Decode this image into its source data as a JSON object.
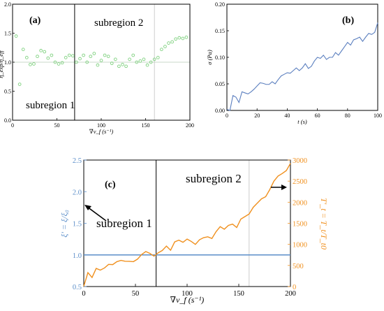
{
  "chart_data": [
    {
      "panel": "(a)",
      "type": "scatter",
      "xlabel": "∇v_f (s⁻¹)",
      "ylabel": "η_exp/η_eff",
      "xlim": [
        0,
        200
      ],
      "ylim": [
        0,
        2.0
      ],
      "xticks": [
        0,
        50,
        100,
        150,
        200
      ],
      "yticks": [
        0.0,
        0.5,
        1.0,
        1.5,
        2.0
      ],
      "reference_line_y": 1.0,
      "boundary_x": 70,
      "secondary_boundary_x": 160,
      "region_labels": [
        "subregion 1",
        "subregion 2"
      ],
      "marker_color": "#7fd17f",
      "series": [
        {
          "x": [
            4,
            8,
            12,
            16,
            20,
            24,
            28,
            32,
            36,
            40,
            44,
            48,
            52,
            56,
            60,
            64,
            68,
            72,
            76,
            80,
            84,
            88,
            92,
            96,
            100,
            104,
            108,
            112,
            116,
            120,
            124,
            128,
            132,
            136,
            140,
            144,
            148,
            152,
            156,
            160,
            164,
            168,
            172,
            176,
            180,
            184,
            188,
            192,
            196
          ],
          "values": [
            1.45,
            0.62,
            1.22,
            1.08,
            0.96,
            0.97,
            1.1,
            1.2,
            1.18,
            1.07,
            1.12,
            1.0,
            0.97,
            0.99,
            1.08,
            1.12,
            1.11,
            1.0,
            1.06,
            1.12,
            1.0,
            1.1,
            1.15,
            0.95,
            1.03,
            1.12,
            1.1,
            0.98,
            1.05,
            0.93,
            0.96,
            0.93,
            1.05,
            1.12,
            1.0,
            1.02,
            1.05,
            0.95,
            1.0,
            1.05,
            1.08,
            1.22,
            1.27,
            1.33,
            1.35,
            1.4,
            1.42,
            1.41,
            1.43
          ]
        }
      ]
    },
    {
      "panel": "(b)",
      "type": "line",
      "xlabel": "t (s)",
      "ylabel": "σ (Pa)",
      "xlim": [
        0,
        100
      ],
      "ylim": [
        0,
        0.2
      ],
      "xticks": [
        0,
        20,
        40,
        60,
        80,
        100
      ],
      "yticks": [
        0.0,
        0.05,
        0.1,
        0.15,
        0.2
      ],
      "line_color": "#5b7fbf",
      "series": [
        {
          "x": [
            0,
            2,
            4,
            6,
            8,
            10,
            12,
            14,
            16,
            18,
            20,
            22,
            24,
            26,
            28,
            30,
            32,
            34,
            36,
            38,
            40,
            42,
            44,
            46,
            48,
            50,
            52,
            54,
            56,
            58,
            60,
            62,
            64,
            66,
            68,
            70,
            72,
            74,
            76,
            78,
            80,
            82,
            84,
            86,
            88,
            90,
            92,
            94,
            96,
            98,
            100
          ],
          "values": [
            0.002,
            0.0,
            0.028,
            0.025,
            0.015,
            0.035,
            0.033,
            0.031,
            0.035,
            0.04,
            0.046,
            0.052,
            0.051,
            0.049,
            0.049,
            0.054,
            0.05,
            0.058,
            0.065,
            0.068,
            0.071,
            0.07,
            0.075,
            0.08,
            0.075,
            0.08,
            0.088,
            0.079,
            0.083,
            0.093,
            0.1,
            0.098,
            0.104,
            0.096,
            0.1,
            0.1,
            0.109,
            0.104,
            0.112,
            0.12,
            0.128,
            0.123,
            0.133,
            0.135,
            0.138,
            0.13,
            0.138,
            0.145,
            0.143,
            0.147,
            0.165
          ]
        }
      ]
    },
    {
      "panel": "(c)",
      "type": "line",
      "xlabel": "∇v_f (s⁻¹)",
      "ylabel_left": "ξ' = ξ/ξ₀",
      "ylabel_right": "T'_t = T_t/T_t0",
      "xlim": [
        0,
        200
      ],
      "ylim_left": [
        0.5,
        2.5
      ],
      "ylim_right": [
        0,
        3000
      ],
      "xticks": [
        0,
        50,
        100,
        150,
        200
      ],
      "yticks_left": [
        0.5,
        1.0,
        1.5,
        2.0,
        2.5
      ],
      "yticks_right": [
        0,
        500,
        1000,
        1500,
        2000,
        2500,
        3000
      ],
      "boundary_x": 70,
      "secondary_boundary_x": 160,
      "region_labels": [
        "subregion 1",
        "subregion 2"
      ],
      "left_color": "#5b8ec9",
      "right_color": "#f0901e",
      "series": [
        {
          "axis": "left",
          "x": [
            0,
            200
          ],
          "values": [
            1.0,
            1.0
          ]
        },
        {
          "axis": "right",
          "x": [
            0,
            4,
            8,
            12,
            16,
            20,
            24,
            28,
            32,
            36,
            40,
            44,
            48,
            52,
            56,
            60,
            64,
            68,
            72,
            76,
            80,
            84,
            88,
            92,
            96,
            100,
            104,
            108,
            112,
            116,
            120,
            124,
            128,
            132,
            136,
            140,
            144,
            148,
            152,
            156,
            160,
            164,
            168,
            172,
            176,
            180,
            184,
            188,
            192,
            196,
            200
          ],
          "values": [
            5,
            330,
            215,
            430,
            390,
            440,
            525,
            520,
            590,
            620,
            600,
            598,
            590,
            650,
            760,
            830,
            785,
            720,
            800,
            855,
            960,
            860,
            1060,
            1100,
            1050,
            1125,
            1070,
            1000,
            1110,
            1160,
            1180,
            1140,
            1300,
            1420,
            1360,
            1450,
            1480,
            1400,
            1600,
            1660,
            1720,
            1880,
            1980,
            2080,
            2130,
            2300,
            2500,
            2620,
            2680,
            2750,
            2920
          ]
        }
      ]
    }
  ]
}
